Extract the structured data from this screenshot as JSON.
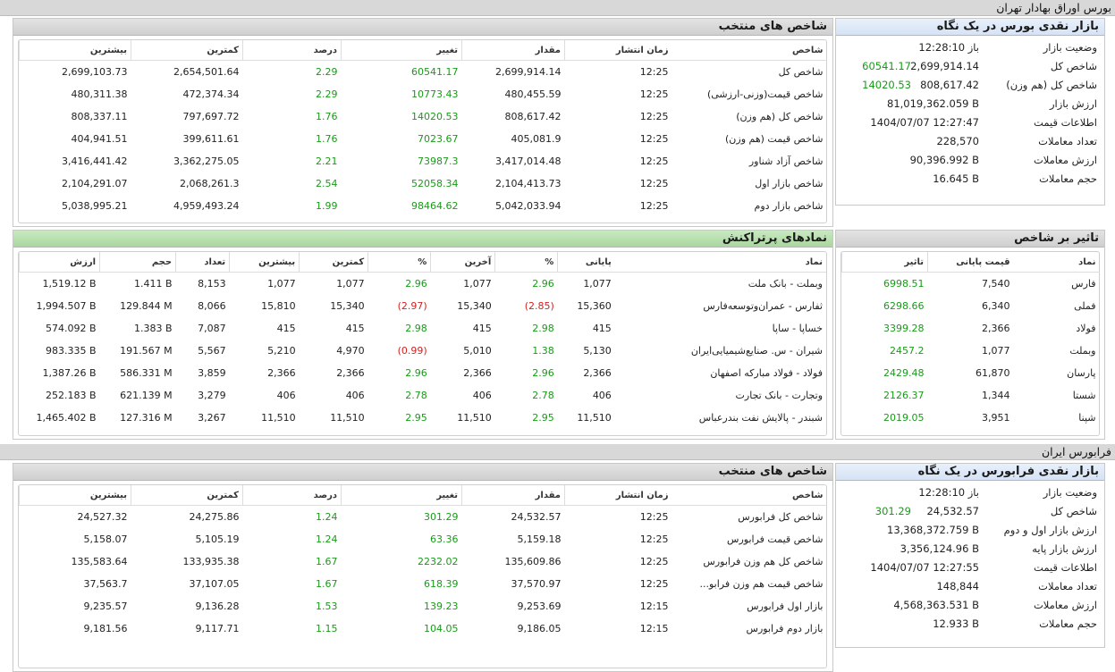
{
  "tehran": {
    "section_title": "بورس اوراق بهادار تهران",
    "overview": {
      "title": "بازار نقدی بورس در یک نگاه",
      "rows": [
        {
          "label": "وضعیت بازار",
          "value": "باز 12:28:10",
          "change": ""
        },
        {
          "label": "شاخص کل",
          "value": "2,699,914.14",
          "change": "60541.17"
        },
        {
          "label": "شاخص کل (هم وزن)",
          "value": "808,617.42",
          "change": "14020.53"
        },
        {
          "label": "ارزش بازار",
          "value": "81,019,362.059 B",
          "change": ""
        },
        {
          "label": "اطلاعات قیمت",
          "value": "1404/07/07 12:27:47",
          "change": ""
        },
        {
          "label": "تعداد معاملات",
          "value": "228,570",
          "change": ""
        },
        {
          "label": "ارزش معاملات",
          "value": "90,396.992 B",
          "change": ""
        },
        {
          "label": "حجم معاملات",
          "value": "16.645 B",
          "change": ""
        }
      ]
    },
    "indices": {
      "title": "شاخص های منتخب",
      "headers": [
        "شاخص",
        "زمان انتشار",
        "مقدار",
        "تغییر",
        "درصد",
        "کمترین",
        "بیشترین"
      ],
      "rows": [
        [
          "شاخص کل",
          "12:25",
          "2,699,914.14",
          "60541.17",
          "2.29",
          "2,654,501.64",
          "2,699,103.73"
        ],
        [
          "شاخص قیمت(وزنی-ارزشی)",
          "12:25",
          "480,455.59",
          "10773.43",
          "2.29",
          "472,374.34",
          "480,311.38"
        ],
        [
          "شاخص کل (هم وزن)",
          "12:25",
          "808,617.42",
          "14020.53",
          "1.76",
          "797,697.72",
          "808,337.11"
        ],
        [
          "شاخص قیمت (هم وزن)",
          "12:25",
          "405,081.9",
          "7023.67",
          "1.76",
          "399,611.61",
          "404,941.51"
        ],
        [
          "شاخص آزاد شناور",
          "12:25",
          "3,417,014.48",
          "73987.3",
          "2.21",
          "3,362,275.05",
          "3,416,441.42"
        ],
        [
          "شاخص بازار اول",
          "12:25",
          "2,104,413.73",
          "52058.34",
          "2.54",
          "2,068,261.3",
          "2,104,291.07"
        ],
        [
          "شاخص بازار دوم",
          "12:25",
          "5,042,033.94",
          "98464.62",
          "1.99",
          "4,959,493.24",
          "5,038,995.21"
        ]
      ]
    },
    "impact": {
      "title": "تاثیر بر شاخص",
      "headers": [
        "نماد",
        "قیمت پایانی",
        "تاثیر"
      ],
      "rows": [
        [
          "فارس",
          "7,540",
          "6998.51"
        ],
        [
          "فملی",
          "6,340",
          "6298.66"
        ],
        [
          "فولاد",
          "2,366",
          "3399.28"
        ],
        [
          "وبملت",
          "1,077",
          "2457.2"
        ],
        [
          "پارسان",
          "61,870",
          "2429.48"
        ],
        [
          "شستا",
          "1,344",
          "2126.37"
        ],
        [
          "شپنا",
          "3,951",
          "2019.05"
        ]
      ]
    },
    "traded": {
      "title": "نمادهای پرتراکنش",
      "headers": [
        "نماد",
        "پایانی",
        "%",
        "آخرین",
        "%",
        "کمترین",
        "بیشترین",
        "تعداد",
        "حجم",
        "ارزش"
      ],
      "rows": [
        [
          "وبملت - بانک ملت",
          "1,077",
          "2.96",
          "1,077",
          "2.96",
          "1,077",
          "1,077",
          "8,153",
          "1.411 B",
          "1,519.12 B"
        ],
        [
          "ثفارس - عمران‌وتوسعه‌فارس",
          "15,360",
          "(2.85)",
          "15,340",
          "(2.97)",
          "15,340",
          "15,810",
          "8,066",
          "129.844 M",
          "1,994.507 B"
        ],
        [
          "خساپا - ساپا",
          "415",
          "2.98",
          "415",
          "2.98",
          "415",
          "415",
          "7,087",
          "1.383 B",
          "574.092 B"
        ],
        [
          "شیران - س. صنایع‌شیمیایی‌ایران",
          "5,130",
          "1.38",
          "5,010",
          "(0.99)",
          "4,970",
          "5,210",
          "5,567",
          "191.567 M",
          "983.335 B"
        ],
        [
          "فولاد - فولاد مبارکه اصفهان",
          "2,366",
          "2.96",
          "2,366",
          "2.96",
          "2,366",
          "2,366",
          "3,859",
          "586.331 M",
          "1,387.26 B"
        ],
        [
          "وتجارت - بانک تجارت",
          "406",
          "2.78",
          "406",
          "2.78",
          "406",
          "406",
          "3,279",
          "621.139 M",
          "252.183 B"
        ],
        [
          "شبندر - پالایش نفت بندرعباس",
          "11,510",
          "2.95",
          "11,510",
          "2.95",
          "11,510",
          "11,510",
          "3,267",
          "127.316 M",
          "1,465.402 B"
        ]
      ]
    }
  },
  "farabourse": {
    "section_title": "فرابورس ایران",
    "overview": {
      "title": "بازار نقدی فرابورس در یک نگاه",
      "rows": [
        {
          "label": "وضعیت بازار",
          "value": "باز 12:28:10",
          "change": ""
        },
        {
          "label": "شاخص کل",
          "value": "24,532.57",
          "change": "301.29"
        },
        {
          "label": "ارزش بازار اول و دوم",
          "value": "13,368,372.759 B",
          "change": ""
        },
        {
          "label": "ارزش بازار پایه",
          "value": "3,356,124.96 B",
          "change": ""
        },
        {
          "label": "اطلاعات قیمت",
          "value": "1404/07/07 12:27:55",
          "change": ""
        },
        {
          "label": "تعداد معاملات",
          "value": "148,844",
          "change": ""
        },
        {
          "label": "ارزش معاملات",
          "value": "4,568,363.531 B",
          "change": ""
        },
        {
          "label": "حجم معاملات",
          "value": "12.933 B",
          "change": ""
        }
      ]
    },
    "indices": {
      "title": "شاخص های منتخب",
      "headers": [
        "شاخص",
        "زمان انتشار",
        "مقدار",
        "تغییر",
        "درصد",
        "کمترین",
        "بیشترین"
      ],
      "rows": [
        [
          "شاخص کل فرابورس",
          "12:25",
          "24,532.57",
          "301.29",
          "1.24",
          "24,275.86",
          "24,527.32"
        ],
        [
          "شاخص قیمت فرابورس",
          "12:25",
          "5,159.18",
          "63.36",
          "1.24",
          "5,105.19",
          "5,158.07"
        ],
        [
          "شاخص کل هم وزن فرابورس",
          "12:25",
          "135,609.86",
          "2232.02",
          "1.67",
          "133,935.38",
          "135,583.64"
        ],
        [
          "شاخص قیمت هم وزن فرابو...",
          "12:25",
          "37,570.97",
          "618.39",
          "1.67",
          "37,107.05",
          "37,563.7"
        ],
        [
          "بازار اول فرابورس",
          "12:15",
          "9,253.69",
          "139.23",
          "1.53",
          "9,136.28",
          "9,235.57"
        ],
        [
          "بازار دوم فرابورس",
          "12:15",
          "9,186.05",
          "104.05",
          "1.15",
          "9,117.71",
          "9,181.56"
        ]
      ]
    }
  }
}
